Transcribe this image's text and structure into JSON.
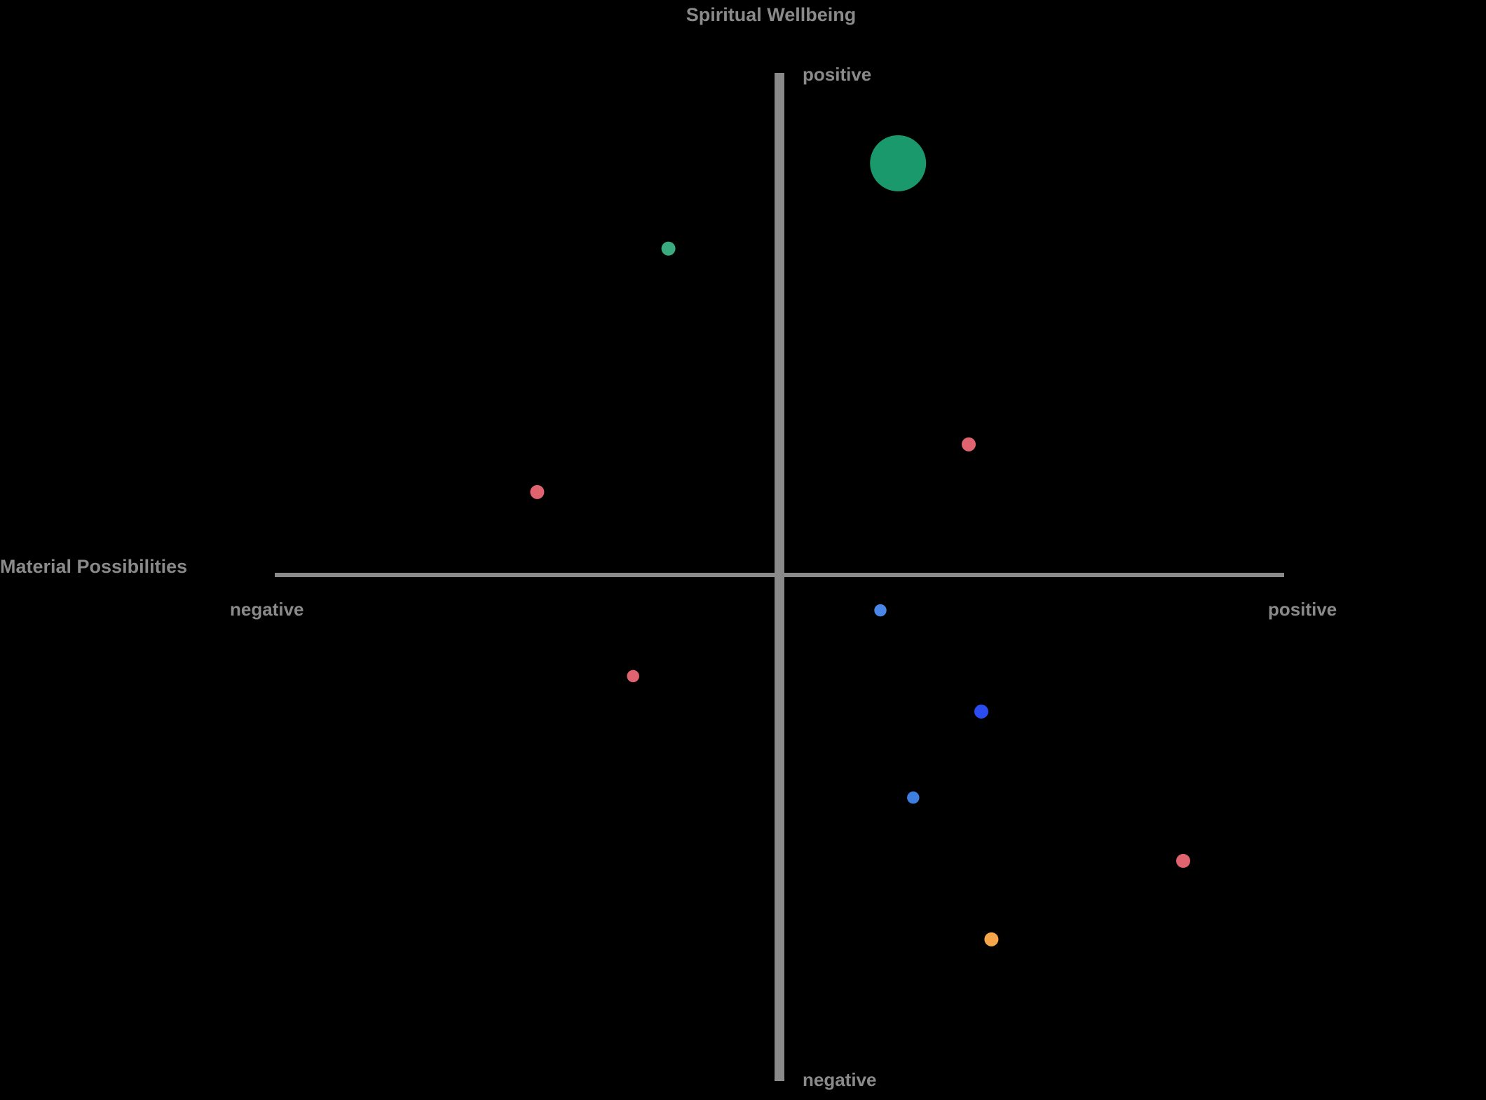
{
  "chart_data": {
    "type": "scatter",
    "y_axis": {
      "name": "Spiritual Wellbeing",
      "high_label": "positive",
      "low_label": "negative",
      "range": [
        -1,
        1
      ]
    },
    "x_axis": {
      "name": "Material Possibilities",
      "low_label": "negative",
      "high_label": "positive",
      "range": [
        -1,
        1
      ]
    },
    "grid": false,
    "points": [
      {
        "x": 0.235,
        "y": 0.82,
        "size": 16,
        "color": "#1a9a6c"
      },
      {
        "x": -0.22,
        "y": 0.65,
        "size": 4,
        "color": "#3aaa7f"
      },
      {
        "x": 0.375,
        "y": 0.26,
        "size": 4,
        "color": "#e06470"
      },
      {
        "x": -0.48,
        "y": 0.165,
        "size": 4,
        "color": "#e06470"
      },
      {
        "x": 0.2,
        "y": -0.07,
        "size": 3.5,
        "color": "#4a86e8"
      },
      {
        "x": -0.29,
        "y": -0.2,
        "size": 3.5,
        "color": "#e06470"
      },
      {
        "x": 0.4,
        "y": -0.27,
        "size": 4,
        "color": "#2a4cf0"
      },
      {
        "x": 0.265,
        "y": -0.44,
        "size": 3.5,
        "color": "#3d7ee0"
      },
      {
        "x": 0.8,
        "y": -0.565,
        "size": 4,
        "color": "#e06470"
      },
      {
        "x": 0.42,
        "y": -0.72,
        "size": 4,
        "color": "#f6a64a"
      }
    ]
  }
}
